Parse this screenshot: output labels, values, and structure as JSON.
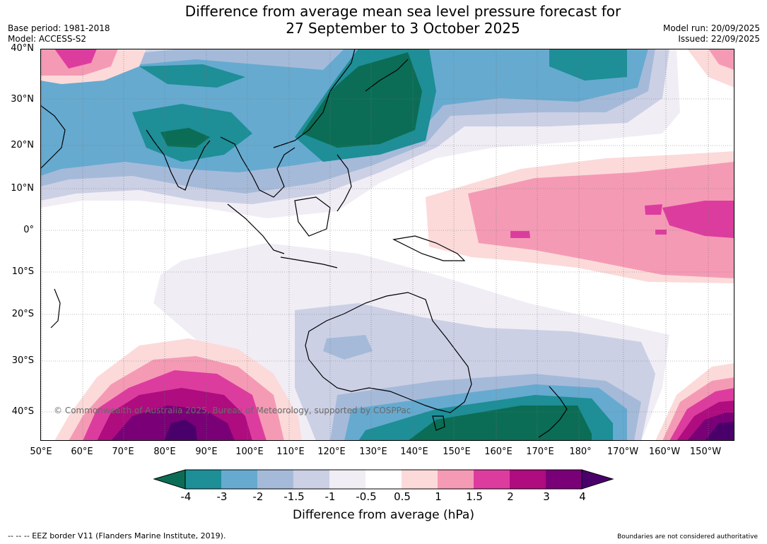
{
  "title_line1": "Difference from average mean sea level pressure forecast for",
  "title_line2": "27 September to 3 October 2025",
  "base_period": "Base period: 1981-2018",
  "model": "Model: ACCESS-S2",
  "model_run": "Model run: 20/09/2025",
  "issued": "Issued: 22/09/2025",
  "lat_labels": [
    "40°N",
    "30°N",
    "20°N",
    "10°N",
    "0°",
    "10°S",
    "20°S",
    "30°S",
    "40°S"
  ],
  "lon_labels": [
    "50°E",
    "60°E",
    "70°E",
    "80°E",
    "90°E",
    "100°E",
    "110°E",
    "120°E",
    "130°E",
    "140°E",
    "150°E",
    "160°E",
    "170°E",
    "180°",
    "170°W",
    "160°W",
    "150°W"
  ],
  "copyright": "© Commonwealth of Australia 2025, Bureau of Meteorology, supported by COSPPac",
  "colorbar": {
    "ticks": [
      "-4",
      "-3",
      "-2",
      "-1.5",
      "-1",
      "-0.5",
      "0.5",
      "1",
      "1.5",
      "2",
      "3",
      "4"
    ],
    "colors": [
      "#0b6d55",
      "#1e8e97",
      "#66aad0",
      "#a5bad9",
      "#ccd0e5",
      "#f0edf5",
      "#ffffff",
      "#fcdada",
      "#f59ab5",
      "#dd3c9f",
      "#ae0c7f",
      "#7a0077",
      "#4a006b"
    ],
    "title": "Difference from average (hPa)"
  },
  "footer_left": "--  --  -- EEZ border V11 (Flanders Marine Institute, 2019).",
  "footer_right": "Boundaries are not considered authoritative"
}
